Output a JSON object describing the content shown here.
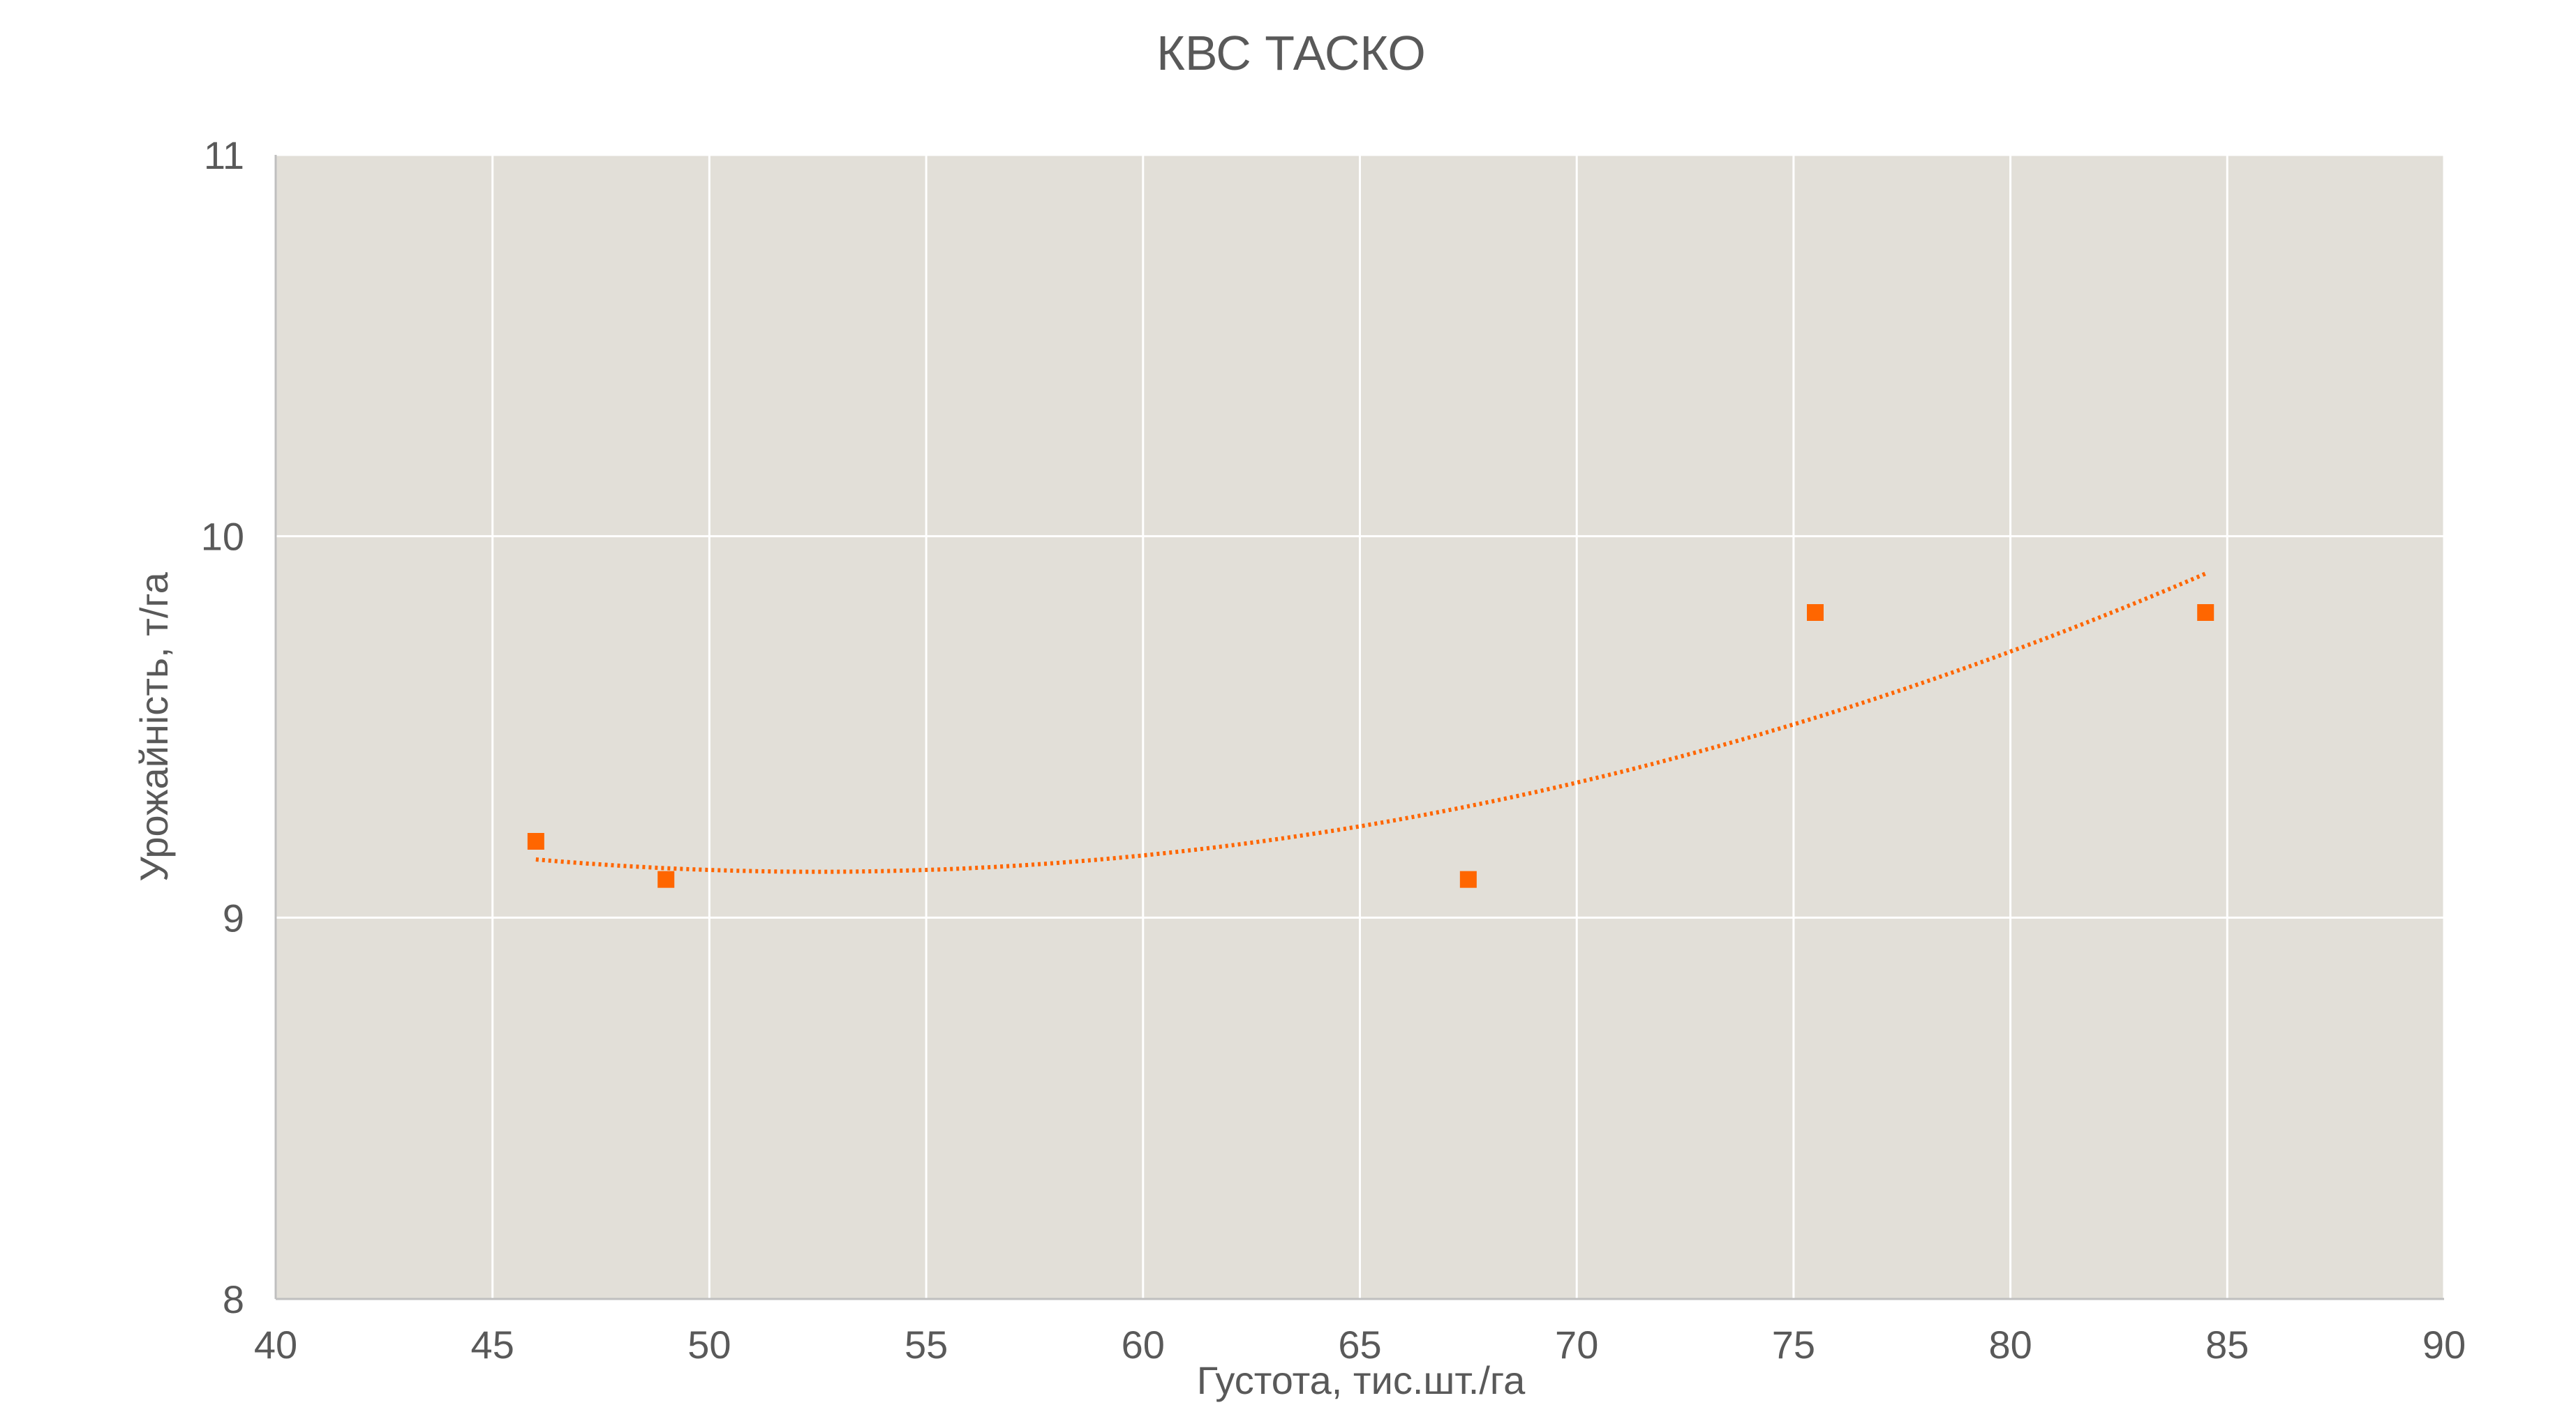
{
  "chart_data": {
    "type": "scatter",
    "title": "КВС ТАСКО",
    "xlabel": "Густота, тис.шт./га",
    "ylabel": "Урожайність, т/га",
    "xlim": [
      40,
      90
    ],
    "ylim": [
      8,
      11
    ],
    "xticks": [
      40,
      45,
      50,
      55,
      60,
      65,
      70,
      75,
      80,
      85,
      90
    ],
    "yticks": [
      8,
      9,
      10,
      11
    ],
    "grid": true,
    "legend": "none",
    "plot_background": "#e2dfd8",
    "series": [
      {
        "x": [
          46,
          49,
          67.5,
          75.5,
          84.5
        ],
        "y": [
          9.2,
          9.1,
          9.1,
          9.8,
          9.8
        ],
        "color": "#ff6600",
        "marker": "square",
        "trendline": "polynomial order 2, dotted"
      }
    ]
  }
}
